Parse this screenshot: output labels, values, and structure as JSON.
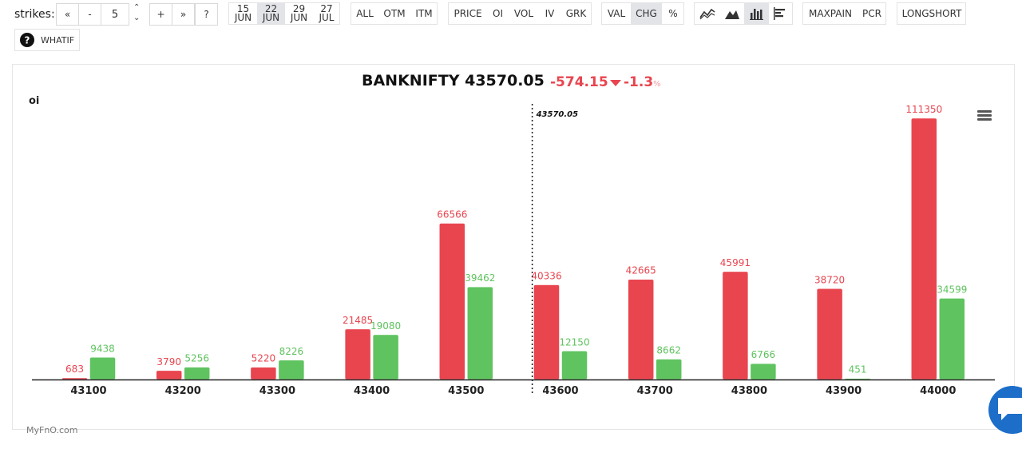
{
  "toolbar": {
    "strikes_label": "strikes:",
    "nav": {
      "first": "«",
      "minus": "-",
      "value": "5",
      "plus": "+",
      "last": "»",
      "help": "?"
    },
    "expiries": [
      {
        "day": "15",
        "month": "JUN",
        "active": false
      },
      {
        "day": "22",
        "month": "JUN",
        "active": true
      },
      {
        "day": "29",
        "month": "JUN",
        "active": false
      },
      {
        "day": "27",
        "month": "JUL",
        "active": false
      }
    ],
    "filter": [
      "ALL",
      "OTM",
      "ITM"
    ],
    "metrics": [
      "PRICE",
      "OI",
      "VOL",
      "IV",
      "GRK"
    ],
    "modes": [
      {
        "label": "VAL",
        "active": false
      },
      {
        "label": "CHG",
        "active": true
      },
      {
        "label": "%",
        "active": false
      }
    ],
    "chart_icons": [
      "line-chart-icon",
      "area-chart-icon",
      "bar-chart-icon",
      "horizontal-bar-chart-icon"
    ],
    "extra1": [
      "MAXPAIN",
      "PCR"
    ],
    "extra2": [
      "LONGSHORT"
    ],
    "whatif": "WHATIF"
  },
  "header": {
    "symbol_price": "BANKNIFTY 43570.05",
    "change": "-574.15",
    "change_pct": "-1.3",
    "pct_sign": "%"
  },
  "watermark": "MyFnO.com",
  "colors": {
    "call": "#e8454f",
    "put": "#5fc35f",
    "axis": "#222222"
  },
  "chart_data": {
    "type": "bar",
    "ylabel": "oi",
    "categories": [
      "43100",
      "43200",
      "43300",
      "43400",
      "43500",
      "43600",
      "43700",
      "43800",
      "43900",
      "44000"
    ],
    "series": [
      {
        "color": "#e8454f",
        "values": [
          683,
          3790,
          5220,
          21485,
          66566,
          40336,
          42665,
          45991,
          38720,
          111350
        ]
      },
      {
        "color": "#5fc35f",
        "values": [
          9438,
          5256,
          8226,
          19080,
          39462,
          12150,
          8662,
          6766,
          451,
          34599
        ]
      }
    ],
    "spot": {
      "value": 43570.05,
      "label": "43570.05"
    },
    "ylim": [
      0,
      111350
    ]
  }
}
